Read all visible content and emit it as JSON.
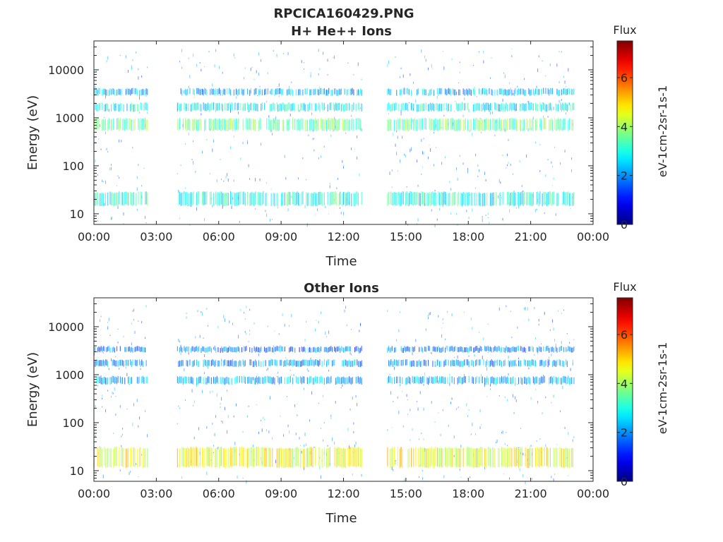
{
  "figure_title": "RPCICA160429.PNG",
  "chart_data": [
    {
      "type": "heatmap",
      "title": "H+ He++ Ions",
      "xlabel": "Time",
      "ylabel": "Energy (eV)",
      "x_ticks": [
        "00:00",
        "03:00",
        "06:00",
        "09:00",
        "12:00",
        "15:00",
        "18:00",
        "21:00",
        "00:00"
      ],
      "x_range_hours": [
        0,
        24
      ],
      "y_scale": "log",
      "y_range": [
        6,
        40000
      ],
      "y_ticks": [
        10,
        100,
        1000,
        10000
      ],
      "y_tick_labels": [
        "10",
        "100",
        "1000",
        "10000"
      ],
      "colorbar": {
        "title": "Flux",
        "label": "eV-1cm-2sr-1s-1",
        "range": [
          0,
          7.5
        ],
        "ticks": [
          0,
          2,
          4,
          6
        ],
        "tick_labels": [
          "0",
          "2",
          "4",
          "6"
        ],
        "colormap": "jet"
      },
      "data_intervals_hours": [
        [
          0,
          2.6
        ],
        [
          4.0,
          12.9
        ],
        [
          14.1,
          23.1
        ]
      ],
      "bands": [
        {
          "energy_eV": [
            3000,
            4000
          ],
          "flux": 2.2
        },
        {
          "energy_eV": [
            1400,
            2000
          ],
          "flux": 2.8
        },
        {
          "energy_eV": [
            550,
            950
          ],
          "flux": 3.6
        },
        {
          "energy_eV": [
            15,
            28
          ],
          "flux": 3.0
        }
      ]
    },
    {
      "type": "heatmap",
      "title": "Other Ions",
      "xlabel": "Time",
      "ylabel": "Energy (eV)",
      "x_ticks": [
        "00:00",
        "03:00",
        "06:00",
        "09:00",
        "12:00",
        "15:00",
        "18:00",
        "21:00",
        "00:00"
      ],
      "x_range_hours": [
        0,
        24
      ],
      "y_scale": "log",
      "y_range": [
        6,
        40000
      ],
      "y_ticks": [
        10,
        100,
        1000,
        10000
      ],
      "y_tick_labels": [
        "10",
        "100",
        "1000",
        "10000"
      ],
      "colorbar": {
        "title": "Flux",
        "label": "eV-1cm-2sr-1s-1",
        "range": [
          0,
          7.5
        ],
        "ticks": [
          0,
          2,
          4,
          6
        ],
        "tick_labels": [
          "0",
          "2",
          "4",
          "6"
        ],
        "colormap": "jet"
      },
      "data_intervals_hours": [
        [
          0,
          2.6
        ],
        [
          4.0,
          12.9
        ],
        [
          14.1,
          23.1
        ]
      ],
      "bands": [
        {
          "energy_eV": [
            3000,
            3800
          ],
          "flux": 1.8
        },
        {
          "energy_eV": [
            1500,
            2000
          ],
          "flux": 2.0
        },
        {
          "energy_eV": [
            650,
            900
          ],
          "flux": 2.2
        },
        {
          "energy_eV": [
            12,
            30
          ],
          "flux": 4.6
        }
      ]
    }
  ]
}
